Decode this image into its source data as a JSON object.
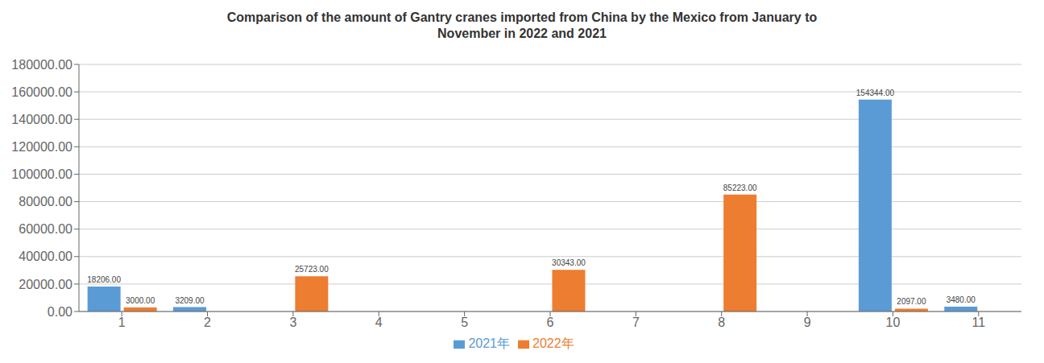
{
  "chart_data": {
    "type": "bar",
    "title": "Comparison of the amount of Gantry cranes imported from China by the Mexico from January to\nNovember in 2022 and 2021",
    "categories": [
      "1",
      "2",
      "3",
      "4",
      "5",
      "6",
      "7",
      "8",
      "9",
      "10",
      "11"
    ],
    "series": [
      {
        "name": "2021年",
        "color": "#5B9BD5",
        "values": [
          18206,
          3209,
          0,
          0,
          0,
          0,
          0,
          0,
          0,
          154344,
          3480
        ],
        "value_labels": [
          "18206.00",
          "3209.00",
          null,
          null,
          null,
          null,
          null,
          null,
          null,
          "154344.00",
          "3480.00"
        ]
      },
      {
        "name": "2022年",
        "color": "#ED7D31",
        "values": [
          3000,
          0,
          25723,
          0,
          0,
          30343,
          0,
          85223,
          0,
          2097,
          0
        ],
        "value_labels": [
          "3000.00",
          null,
          "25723.00",
          null,
          null,
          "30343.00",
          null,
          "85223.00",
          null,
          "2097.00",
          null
        ]
      }
    ],
    "ylim": [
      0,
      180000
    ],
    "yticks": [
      {
        "value": 0,
        "label": "0.00"
      },
      {
        "value": 20000,
        "label": "20000.00"
      },
      {
        "value": 40000,
        "label": "40000.00"
      },
      {
        "value": 60000,
        "label": "60000.00"
      },
      {
        "value": 80000,
        "label": "80000.00"
      },
      {
        "value": 100000,
        "label": "100000.00"
      },
      {
        "value": 120000,
        "label": "120000.00"
      },
      {
        "value": 140000,
        "label": "140000.00"
      },
      {
        "value": 160000,
        "label": "160000.00"
      },
      {
        "value": 180000,
        "label": "180000.00"
      }
    ],
    "grid": true,
    "legend": "bottom",
    "data_labels": true
  }
}
